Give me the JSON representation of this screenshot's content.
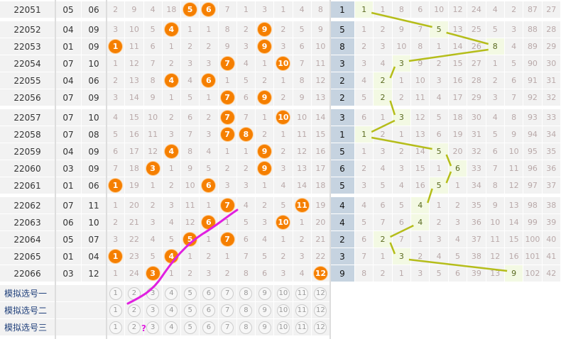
{
  "colors": {
    "ball": "#f57f00",
    "blue_cell": "#c6d3e0",
    "highlight": "#f3f9e3",
    "trend_line": "#b5bd1a",
    "annotation": "#e020e0",
    "sim_label": "#1f3f7a"
  },
  "rows": [
    {
      "issue": "22051",
      "a": "05",
      "b": "06",
      "cells": [
        2,
        9,
        4,
        18,
        5,
        6,
        7,
        1,
        3,
        1,
        4,
        8
      ],
      "hits": [
        5,
        6
      ],
      "blue": "1",
      "right": [
        1,
        1,
        8,
        6,
        10,
        12,
        24,
        4,
        2,
        87,
        27
      ],
      "hl": 0
    },
    {
      "issue": "22052",
      "a": "04",
      "b": "09",
      "cells": [
        3,
        10,
        5,
        4,
        1,
        1,
        8,
        2,
        9,
        2,
        5,
        9
      ],
      "hits": [
        4,
        9
      ],
      "blue": "5",
      "right": [
        1,
        2,
        9,
        7,
        5,
        13,
        25,
        5,
        3,
        88,
        28
      ],
      "hl": 4
    },
    {
      "issue": "22053",
      "a": "01",
      "b": "09",
      "cells": [
        1,
        11,
        6,
        1,
        2,
        2,
        9,
        3,
        9,
        3,
        6,
        10
      ],
      "hits": [
        1,
        9
      ],
      "blue": "8",
      "right": [
        2,
        3,
        10,
        8,
        1,
        14,
        26,
        8,
        4,
        89,
        29
      ],
      "hl": 7
    },
    {
      "issue": "22054",
      "a": "07",
      "b": "10",
      "cells": [
        1,
        12,
        7,
        2,
        3,
        3,
        7,
        4,
        1,
        10,
        7,
        11
      ],
      "hits": [
        7,
        10
      ],
      "blue": "3",
      "right": [
        3,
        4,
        3,
        9,
        2,
        15,
        27,
        1,
        5,
        90,
        30
      ],
      "hl": 2
    },
    {
      "issue": "22055",
      "a": "04",
      "b": "06",
      "cells": [
        2,
        13,
        8,
        4,
        4,
        6,
        1,
        5,
        2,
        1,
        8,
        12
      ],
      "hits": [
        4,
        6
      ],
      "blue": "2",
      "right": [
        4,
        2,
        1,
        10,
        3,
        16,
        28,
        2,
        6,
        91,
        31
      ],
      "hl": 1
    },
    {
      "issue": "22056",
      "a": "07",
      "b": "09",
      "cells": [
        3,
        14,
        9,
        1,
        5,
        1,
        7,
        6,
        9,
        2,
        9,
        13
      ],
      "hits": [
        7,
        9
      ],
      "blue": "2",
      "right": [
        5,
        2,
        2,
        11,
        4,
        17,
        29,
        3,
        7,
        92,
        32
      ],
      "hl": 1
    },
    {
      "issue": "22057",
      "a": "07",
      "b": "10",
      "cells": [
        4,
        15,
        10,
        2,
        6,
        2,
        7,
        7,
        1,
        10,
        10,
        14
      ],
      "hits": [
        7,
        10
      ],
      "blue": "3",
      "right": [
        6,
        1,
        3,
        12,
        5,
        18,
        30,
        4,
        8,
        93,
        33
      ],
      "hl": 2
    },
    {
      "issue": "22058",
      "a": "07",
      "b": "08",
      "cells": [
        5,
        16,
        11,
        3,
        7,
        3,
        7,
        8,
        2,
        1,
        11,
        15
      ],
      "hits": [
        7,
        8
      ],
      "blue": "1",
      "right": [
        1,
        2,
        1,
        13,
        6,
        19,
        31,
        5,
        9,
        94,
        34
      ],
      "hl": 0
    },
    {
      "issue": "22059",
      "a": "04",
      "b": "09",
      "cells": [
        6,
        17,
        12,
        4,
        8,
        4,
        1,
        1,
        9,
        2,
        12,
        16
      ],
      "hits": [
        4,
        9
      ],
      "blue": "5",
      "right": [
        1,
        3,
        2,
        14,
        5,
        20,
        32,
        6,
        10,
        95,
        35
      ],
      "hl": 4
    },
    {
      "issue": "22060",
      "a": "03",
      "b": "09",
      "cells": [
        7,
        18,
        3,
        1,
        9,
        5,
        2,
        2,
        9,
        3,
        13,
        17
      ],
      "hits": [
        3,
        9
      ],
      "blue": "6",
      "right": [
        2,
        4,
        3,
        15,
        1,
        6,
        33,
        7,
        11,
        96,
        36
      ],
      "hl": 5
    },
    {
      "issue": "22061",
      "a": "01",
      "b": "06",
      "cells": [
        1,
        19,
        1,
        2,
        10,
        6,
        3,
        3,
        1,
        4,
        14,
        18
      ],
      "hits": [
        1,
        6
      ],
      "blue": "5",
      "right": [
        3,
        5,
        4,
        16,
        5,
        1,
        34,
        8,
        12,
        97,
        37
      ],
      "hl": 4
    },
    {
      "issue": "22062",
      "a": "07",
      "b": "11",
      "cells": [
        1,
        20,
        2,
        3,
        11,
        1,
        7,
        4,
        2,
        5,
        11,
        19
      ],
      "hits": [
        7,
        11
      ],
      "blue": "4",
      "right": [
        4,
        6,
        5,
        4,
        1,
        2,
        35,
        9,
        13,
        98,
        38
      ],
      "hl": 3
    },
    {
      "issue": "22063",
      "a": "06",
      "b": "10",
      "cells": [
        2,
        21,
        3,
        4,
        12,
        6,
        1,
        5,
        3,
        10,
        1,
        20
      ],
      "hits": [
        6,
        10
      ],
      "blue": "4",
      "right": [
        5,
        7,
        6,
        4,
        2,
        3,
        36,
        10,
        14,
        99,
        39
      ],
      "hl": 3
    },
    {
      "issue": "22064",
      "a": "05",
      "b": "07",
      "cells": [
        3,
        22,
        4,
        5,
        5,
        1,
        7,
        6,
        4,
        1,
        2,
        21
      ],
      "hits": [
        5,
        7
      ],
      "blue": "2",
      "right": [
        6,
        2,
        7,
        1,
        3,
        4,
        37,
        11,
        15,
        100,
        40
      ],
      "hl": 1
    },
    {
      "issue": "22065",
      "a": "01",
      "b": "04",
      "cells": [
        1,
        23,
        5,
        4,
        1,
        2,
        1,
        7,
        5,
        2,
        3,
        22
      ],
      "hits": [
        1,
        4
      ],
      "blue": "3",
      "right": [
        7,
        1,
        3,
        2,
        4,
        5,
        38,
        12,
        16,
        101,
        41
      ],
      "hl": 2
    },
    {
      "issue": "22066",
      "a": "03",
      "b": "12",
      "cells": [
        1,
        24,
        3,
        1,
        2,
        3,
        2,
        8,
        6,
        3,
        4,
        12
      ],
      "hits": [
        3,
        12
      ],
      "blue": "9",
      "right": [
        8,
        2,
        1,
        3,
        5,
        6,
        39,
        13,
        9,
        102,
        42
      ],
      "hl": 8
    }
  ],
  "sim": {
    "labels": [
      "模拟选号一",
      "模拟选号二",
      "模拟选号三"
    ],
    "numbers": [
      1,
      2,
      3,
      4,
      5,
      6,
      7,
      8,
      9,
      10,
      11,
      12
    ]
  },
  "annotation": {
    "mark": "?"
  }
}
